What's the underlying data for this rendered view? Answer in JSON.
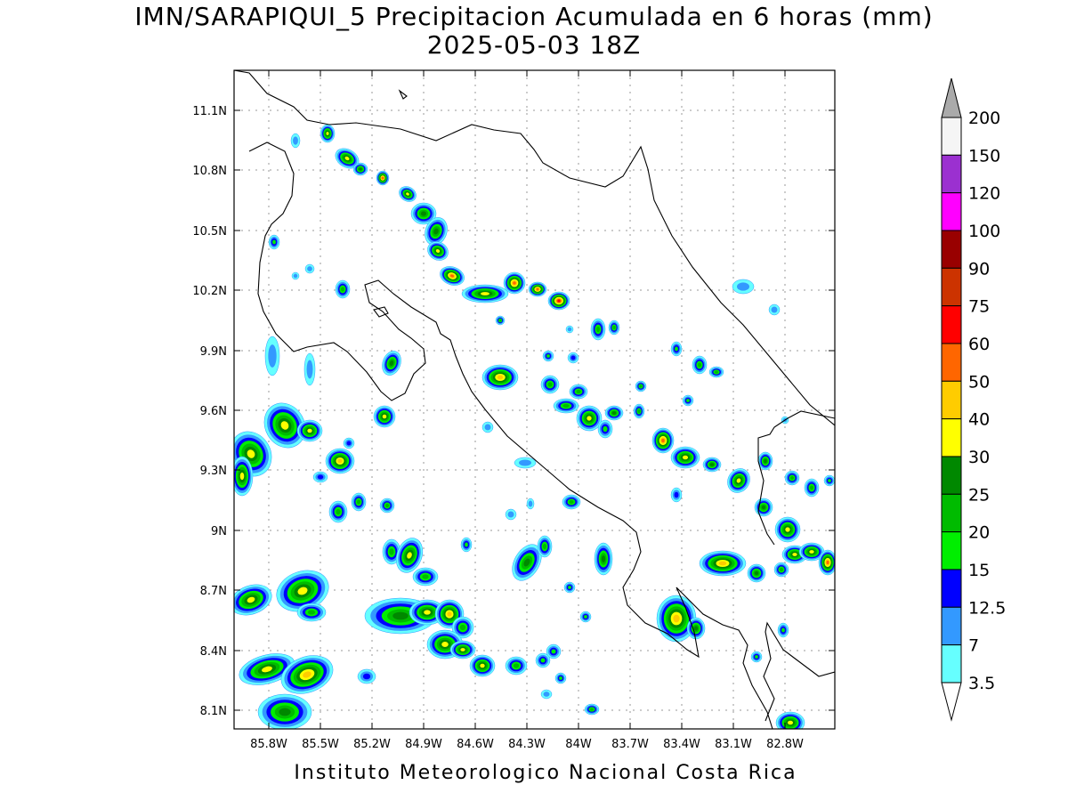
{
  "header": {
    "title": "IMN/SARAPIQUI_5 Precipitacion Acumulada en 6 horas (mm)",
    "subtitle": "2025-05-03 18Z"
  },
  "footer": {
    "credit": "Instituto Meteorologico Nacional Costa Rica"
  },
  "map": {
    "lat_ticks": [
      "11.1N",
      "10.8N",
      "10.5N",
      "10.2N",
      "9.9N",
      "9.6N",
      "9.3N",
      "9N",
      "8.7N",
      "8.4N",
      "8.1N"
    ],
    "lon_ticks": [
      "85.8W",
      "85.5W",
      "85.2W",
      "84.9W",
      "84.6W",
      "84.3W",
      "84W",
      "83.7W",
      "83.4W",
      "83.1W",
      "82.8W"
    ]
  },
  "colorbar": {
    "labels": [
      "200",
      "150",
      "120",
      "100",
      "90",
      "75",
      "60",
      "50",
      "40",
      "30",
      "25",
      "20",
      "15",
      "12.5",
      "7",
      "3.5"
    ],
    "colors": [
      "#f5f5f5",
      "#9b30d0",
      "#ff00ff",
      "#990000",
      "#cc3300",
      "#ff0000",
      "#ff6600",
      "#ffcc00",
      "#ffff00",
      "#008800",
      "#00bb00",
      "#00ee00",
      "#0000ff",
      "#3399ff",
      "#66ffff",
      "#ffffff"
    ],
    "over_color": "#aaaaaa"
  }
}
